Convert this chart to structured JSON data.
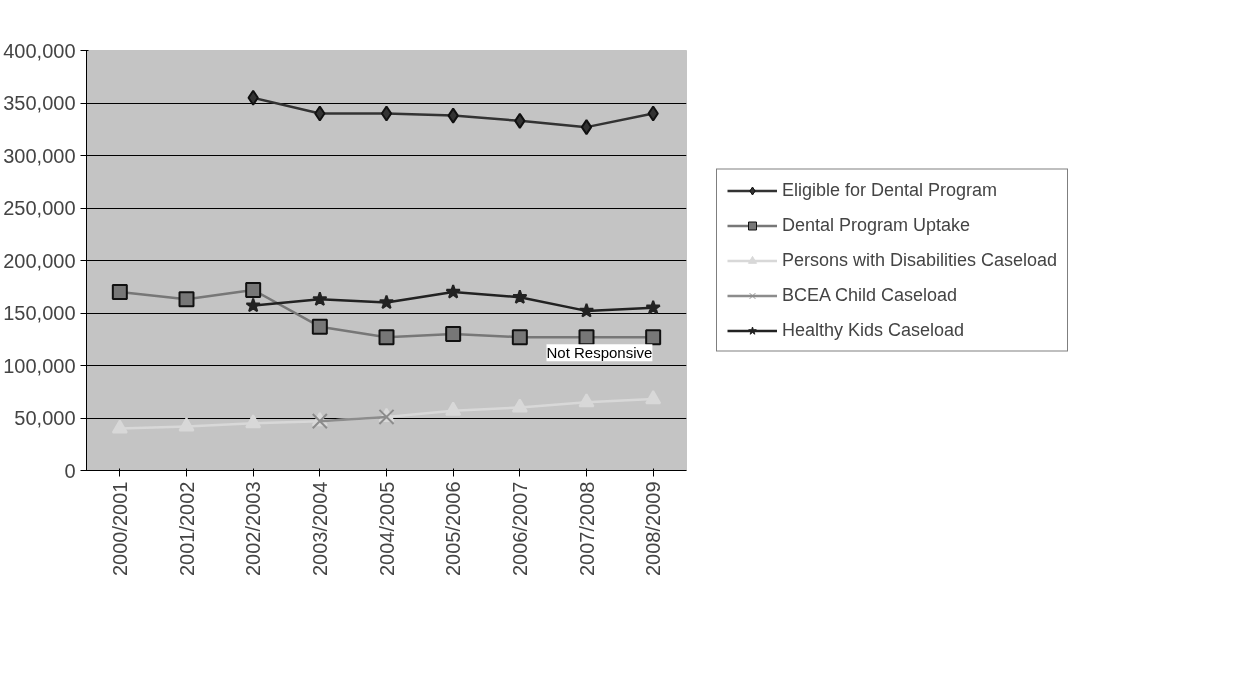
{
  "chart_data": {
    "type": "line",
    "categories": [
      "2000/2001",
      "2001/2002",
      "2002/2003",
      "2003/2004",
      "2004/2005",
      "2005/2006",
      "2006/2007",
      "2007/2008",
      "2008/2009"
    ],
    "series": [
      {
        "name": "Eligible for Dental Program",
        "color": "#333333",
        "marker": "diamond",
        "values": [
          null,
          null,
          355000,
          340000,
          340000,
          338000,
          333000,
          327000,
          340000
        ]
      },
      {
        "name": "Dental Program Uptake",
        "color": "#777777",
        "marker": "square",
        "values": [
          170000,
          163000,
          172000,
          137000,
          127000,
          130000,
          127000,
          127000,
          127000
        ]
      },
      {
        "name": "Persons with Disabilities Caseload",
        "color": "#d8d8d8",
        "marker": "triangle",
        "values": [
          40000,
          42000,
          45000,
          47000,
          51000,
          57000,
          60000,
          65000,
          68000
        ]
      },
      {
        "name": "BCEA Child Caseload",
        "color": "#8c8c8c",
        "marker": "cross",
        "values": [
          null,
          null,
          null,
          47000,
          51000,
          null,
          null,
          null,
          null
        ]
      },
      {
        "name": "Healthy Kids Caseload",
        "color": "#222222",
        "marker": "star",
        "values": [
          null,
          null,
          157000,
          163000,
          160000,
          170000,
          165000,
          152000,
          155000
        ]
      }
    ],
    "ylim": [
      0,
      400000
    ],
    "yticks": [
      {
        "value": 0,
        "label": "0"
      },
      {
        "value": 50000,
        "label": "50,000"
      },
      {
        "value": 100000,
        "label": "100,000"
      },
      {
        "value": 150000,
        "label": "150,000"
      },
      {
        "value": 200000,
        "label": "200,000"
      },
      {
        "value": 250000,
        "label": "250,000"
      },
      {
        "value": 300000,
        "label": "300,000"
      },
      {
        "value": 350000,
        "label": "350,000"
      },
      {
        "value": 400000,
        "label": "400,000"
      }
    ],
    "grid": "y",
    "legend": "right",
    "annotations": [
      "Not Responsive"
    ]
  }
}
